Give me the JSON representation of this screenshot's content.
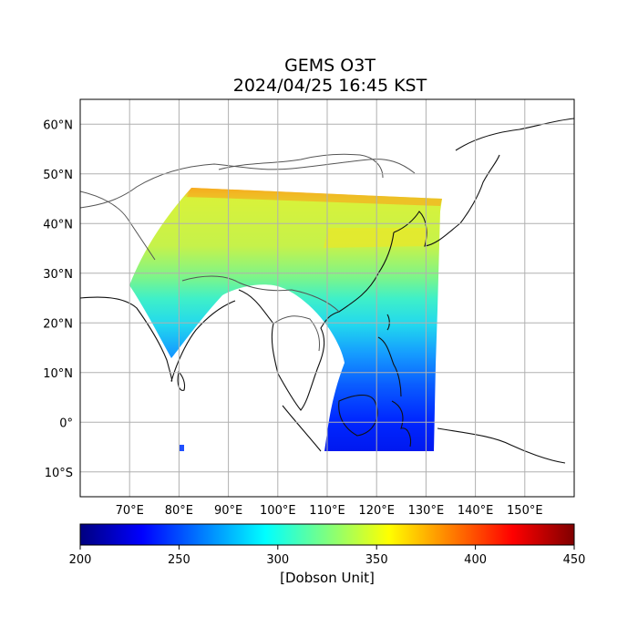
{
  "title": {
    "product": "GEMS O3T",
    "timestamp": "2024/04/25 16:45 KST"
  },
  "map": {
    "lat_range": [
      -15,
      65
    ],
    "lon_range": [
      60,
      160
    ],
    "lat_ticks": [
      {
        "value": 60,
        "label": "60°N"
      },
      {
        "value": 50,
        "label": "50°N"
      },
      {
        "value": 40,
        "label": "40°N"
      },
      {
        "value": 30,
        "label": "30°N"
      },
      {
        "value": 20,
        "label": "20°N"
      },
      {
        "value": 10,
        "label": "10°N"
      },
      {
        "value": 0,
        "label": "0°"
      },
      {
        "value": -10,
        "label": "10°S"
      }
    ],
    "lon_ticks": [
      {
        "value": 70,
        "label": "70°E"
      },
      {
        "value": 80,
        "label": "80°E"
      },
      {
        "value": 90,
        "label": "90°E"
      },
      {
        "value": 100,
        "label": "100°E"
      },
      {
        "value": 110,
        "label": "110°E"
      },
      {
        "value": 120,
        "label": "120°E"
      },
      {
        "value": 130,
        "label": "130°E"
      },
      {
        "value": 140,
        "label": "140°E"
      },
      {
        "value": 150,
        "label": "150°E"
      }
    ],
    "grid": true
  },
  "colorbar": {
    "min": 200,
    "max": 450,
    "ticks": [
      "200",
      "250",
      "300",
      "350",
      "400",
      "450"
    ],
    "label": "[Dobson Unit]",
    "colormap": [
      "#00007f",
      "#0000ff",
      "#007fff",
      "#00ffff",
      "#7fff7f",
      "#ffff00",
      "#ff7f00",
      "#ff0000",
      "#7f0000"
    ]
  }
}
